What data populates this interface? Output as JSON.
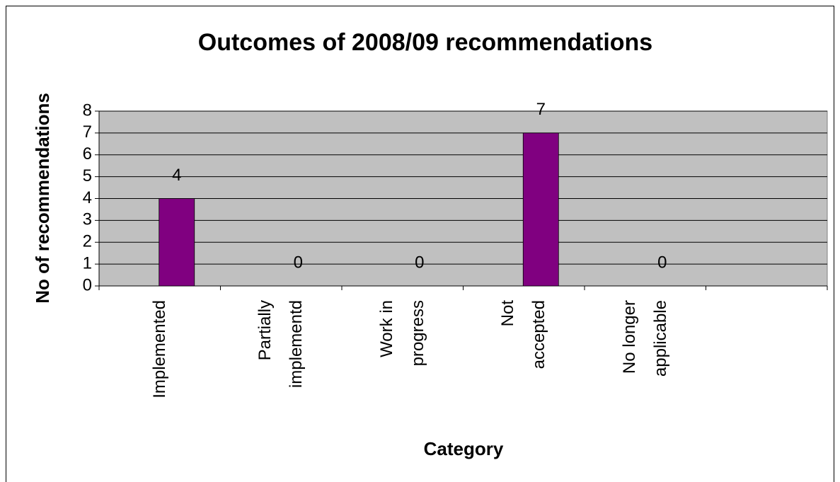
{
  "chart_data": {
    "type": "bar",
    "title": "Outcomes of 2008/09 recommendations",
    "y_label": "No of recommendations",
    "x_label": "Category",
    "categories": [
      "Implemented",
      "Partially\nimplementd",
      "Work in\nprogress",
      "Not\naccepted",
      "No longer\napplicable",
      null
    ],
    "values": [
      4,
      0,
      0,
      7,
      0,
      null
    ],
    "color": "#800080",
    "ylim": [
      0,
      8
    ],
    "yticks": [
      0,
      1,
      2,
      3,
      4,
      5,
      6,
      7,
      8
    ],
    "grid": true
  }
}
